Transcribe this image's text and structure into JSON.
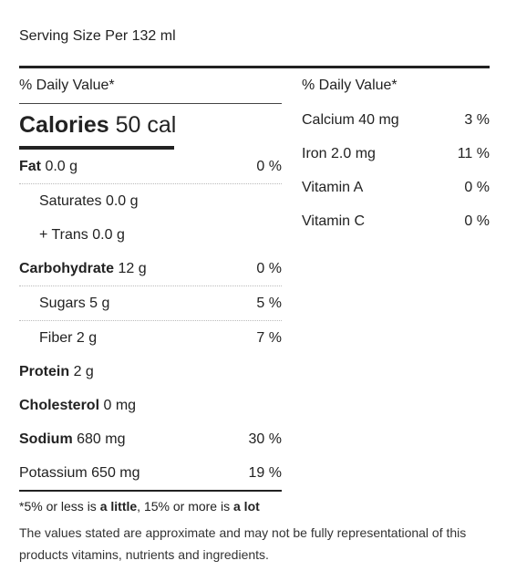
{
  "serving": "Serving Size Per 132 ml",
  "left": {
    "dv_header": "% Daily Value*",
    "calories_label": "Calories",
    "calories_value": "50 cal",
    "rows": [
      {
        "label": "Fat",
        "value": "0.0 g",
        "pct": "0 %"
      },
      {
        "label": "Saturates",
        "value": "0.0 g",
        "pct": ""
      },
      {
        "label": "+ Trans",
        "value": "0.0 g",
        "pct": ""
      },
      {
        "label": "Carbohydrate",
        "value": "12 g",
        "pct": "0 %"
      },
      {
        "label": "Sugars",
        "value": "5 g",
        "pct": "5 %"
      },
      {
        "label": "Fiber",
        "value": "2 g",
        "pct": "7 %"
      },
      {
        "label": "Protein",
        "value": "2 g",
        "pct": ""
      },
      {
        "label": "Cholesterol",
        "value": "0 mg",
        "pct": ""
      },
      {
        "label": "Sodium",
        "value": "680 mg",
        "pct": "30 %"
      },
      {
        "label": "Potassium",
        "value": "650 mg",
        "pct": "19 %"
      }
    ]
  },
  "right": {
    "dv_header": "% Daily Value*",
    "rows": [
      {
        "label": "Calcium 40 mg",
        "pct": "3 %"
      },
      {
        "label": "Iron 2.0 mg",
        "pct": "11 %"
      },
      {
        "label": "Vitamin A",
        "pct": "0 %"
      },
      {
        "label": "Vitamin C",
        "pct": "0 %"
      }
    ]
  },
  "footnote": {
    "prefix": "*5% or less is ",
    "little": "a little",
    "middle": ", 15% or more is ",
    "lot": "a lot",
    "disclaimer": "The values stated are approximate and may not be fully representational of this products vitamins, nutrients and ingredients."
  }
}
